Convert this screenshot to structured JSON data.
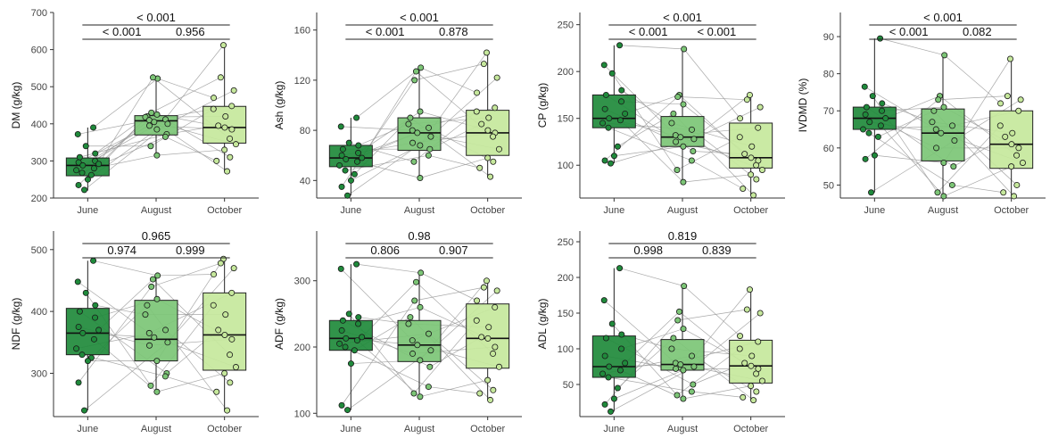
{
  "colors": {
    "june": "#1f8a3b",
    "august": "#7cc576",
    "october": "#c6e89c"
  },
  "chart_data": [
    {
      "type": "box",
      "ylabel": "DM (g/kg)",
      "categories": [
        "June",
        "August",
        "October"
      ],
      "ylim": [
        200,
        700
      ],
      "yticks": [
        200,
        300,
        400,
        500,
        600,
        700
      ],
      "boxes": [
        {
          "whisker_low": 220,
          "q1": 260,
          "median": 288,
          "q3": 308,
          "whisker_high": 390
        },
        {
          "whisker_low": 315,
          "q1": 370,
          "median": 408,
          "q3": 422,
          "whisker_high": 525
        },
        {
          "whisker_low": 272,
          "q1": 348,
          "median": 390,
          "q3": 447,
          "whisker_high": 612
        }
      ],
      "points": [
        [
          390,
          372,
          340,
          320,
          310,
          300,
          296,
          292,
          288,
          280,
          275,
          268,
          262,
          250,
          235,
          222
        ],
        [
          522,
          525,
          430,
          425,
          420,
          418,
          412,
          410,
          405,
          400,
          395,
          385,
          372,
          365,
          340,
          315
        ],
        [
          612,
          525,
          490,
          470,
          448,
          440,
          420,
          395,
          390,
          385,
          360,
          345,
          330,
          310,
          300,
          272
        ]
      ],
      "comparisons": [
        {
          "label": "< 0.001",
          "from": 0,
          "to": 1
        },
        {
          "label": "0.956",
          "from": 1,
          "to": 2
        },
        {
          "label": "< 0.001",
          "from": 0,
          "to": 2
        }
      ]
    },
    {
      "type": "box",
      "ylabel": "Ash (g/kg)",
      "categories": [
        "June",
        "August",
        "October"
      ],
      "ylim": [
        26,
        174
      ],
      "yticks": [
        40,
        80,
        120,
        160
      ],
      "boxes": [
        {
          "whisker_low": 28,
          "q1": 51,
          "median": 58,
          "q3": 68,
          "whisker_high": 90
        },
        {
          "whisker_low": 42,
          "q1": 64,
          "median": 78,
          "q3": 90,
          "whisker_high": 130
        },
        {
          "whisker_low": 43,
          "q1": 60,
          "median": 78,
          "q3": 96,
          "whisker_high": 142
        }
      ],
      "points": [
        [
          90,
          83,
          70,
          68,
          65,
          62,
          60,
          58,
          57,
          55,
          52,
          48,
          45,
          40,
          35,
          28
        ],
        [
          130,
          127,
          120,
          95,
          90,
          85,
          82,
          80,
          78,
          75,
          70,
          68,
          65,
          60,
          55,
          42
        ],
        [
          142,
          133,
          122,
          110,
          98,
          95,
          90,
          85,
          80,
          78,
          75,
          65,
          58,
          55,
          50,
          43
        ]
      ],
      "comparisons": [
        {
          "label": "< 0.001",
          "from": 0,
          "to": 1
        },
        {
          "label": "0.878",
          "from": 1,
          "to": 2
        },
        {
          "label": "< 0.001",
          "from": 0,
          "to": 2
        }
      ]
    },
    {
      "type": "box",
      "ylabel": "CP (g/kg)",
      "categories": [
        "June",
        "August",
        "October"
      ],
      "ylim": [
        65,
        263
      ],
      "yticks": [
        100,
        150,
        200,
        250
      ],
      "boxes": [
        {
          "whisker_low": 102,
          "q1": 140,
          "median": 150,
          "q3": 175,
          "whisker_high": 228
        },
        {
          "whisker_low": 82,
          "q1": 120,
          "median": 130,
          "q3": 152,
          "whisker_high": 224
        },
        {
          "whisker_low": 68,
          "q1": 97,
          "median": 108,
          "q3": 145,
          "whisker_high": 175
        }
      ],
      "points": [
        [
          228,
          207,
          198,
          180,
          175,
          168,
          160,
          155,
          150,
          148,
          145,
          140,
          120,
          110,
          105,
          102
        ],
        [
          224,
          175,
          173,
          165,
          155,
          145,
          138,
          132,
          130,
          128,
          125,
          120,
          115,
          105,
          95,
          82
        ],
        [
          175,
          170,
          162,
          150,
          140,
          130,
          120,
          112,
          108,
          105,
          100,
          95,
          90,
          85,
          75,
          68
        ]
      ],
      "comparisons": [
        {
          "label": "< 0.001",
          "from": 0,
          "to": 1
        },
        {
          "label": "< 0.001",
          "from": 1,
          "to": 2
        },
        {
          "label": "< 0.001",
          "from": 0,
          "to": 2
        }
      ]
    },
    {
      "type": "box",
      "ylabel": "IVDMD (%)",
      "categories": [
        "June",
        "August",
        "October"
      ],
      "ylim": [
        46.5,
        96.5
      ],
      "yticks": [
        50,
        60,
        70,
        80,
        90
      ],
      "boxes": [
        {
          "whisker_low": 48,
          "q1": 65,
          "median": 68,
          "q3": 71,
          "whisker_high": 89.5
        },
        {
          "whisker_low": 47,
          "q1": 56.5,
          "median": 64,
          "q3": 70.5,
          "whisker_high": 85
        },
        {
          "whisker_low": 47,
          "q1": 54.5,
          "median": 61,
          "q3": 70,
          "whisker_high": 84
        }
      ],
      "points": [
        [
          89.5,
          76.5,
          74,
          72,
          71,
          70,
          69,
          68,
          67,
          66,
          65,
          64,
          63,
          58,
          57,
          48
        ],
        [
          85,
          74,
          73,
          71,
          70,
          67,
          66,
          65,
          64,
          62,
          60,
          56,
          55,
          50,
          48,
          47
        ],
        [
          84,
          74,
          73,
          72,
          70,
          66,
          64,
          63,
          61,
          60,
          58,
          56,
          55,
          50,
          48,
          47
        ]
      ],
      "comparisons": [
        {
          "label": "< 0.001",
          "from": 0,
          "to": 1
        },
        {
          "label": "0.082",
          "from": 1,
          "to": 2
        },
        {
          "label": "< 0.001",
          "from": 0,
          "to": 2
        }
      ]
    },
    {
      "type": "box",
      "ylabel": "NDF (g/kg)",
      "categories": [
        "June",
        "August",
        "October"
      ],
      "ylim": [
        230,
        530
      ],
      "yticks": [
        300,
        400,
        500
      ],
      "boxes": [
        {
          "whisker_low": 240,
          "q1": 330,
          "median": 365,
          "q3": 405,
          "whisker_high": 482
        },
        {
          "whisker_low": 270,
          "q1": 320,
          "median": 355,
          "q3": 418,
          "whisker_high": 458
        },
        {
          "whisker_low": 240,
          "q1": 305,
          "median": 362,
          "q3": 430,
          "whisker_high": 485
        }
      ],
      "points": [
        [
          482,
          448,
          430,
          410,
          400,
          390,
          375,
          370,
          365,
          355,
          340,
          330,
          325,
          320,
          285,
          240
        ],
        [
          458,
          452,
          440,
          420,
          410,
          395,
          370,
          365,
          358,
          350,
          345,
          320,
          300,
          295,
          280,
          270
        ],
        [
          485,
          478,
          470,
          460,
          430,
          410,
          395,
          370,
          362,
          355,
          330,
          310,
          300,
          285,
          270,
          240
        ]
      ],
      "comparisons": [
        {
          "label": "0.974",
          "from": 0,
          "to": 1
        },
        {
          "label": "0.999",
          "from": 1,
          "to": 2
        },
        {
          "label": "0.965",
          "from": 0,
          "to": 2
        }
      ]
    },
    {
      "type": "box",
      "ylabel": "ADF (g/kg)",
      "categories": [
        "June",
        "August",
        "October"
      ],
      "ylim": [
        95,
        375
      ],
      "yticks": [
        100,
        200,
        300
      ],
      "boxes": [
        {
          "whisker_low": 105,
          "q1": 195,
          "median": 213,
          "q3": 240,
          "whisker_high": 325
        },
        {
          "whisker_low": 125,
          "q1": 178,
          "median": 203,
          "q3": 240,
          "whisker_high": 312
        },
        {
          "whisker_low": 120,
          "q1": 168,
          "median": 213,
          "q3": 265,
          "whisker_high": 300
        }
      ],
      "points": [
        [
          325,
          318,
          250,
          245,
          240,
          235,
          225,
          215,
          213,
          210,
          205,
          200,
          195,
          175,
          112,
          105
        ],
        [
          312,
          298,
          270,
          260,
          245,
          235,
          220,
          210,
          203,
          195,
          190,
          180,
          170,
          140,
          130,
          125
        ],
        [
          300,
          290,
          285,
          270,
          260,
          240,
          230,
          215,
          213,
          200,
          190,
          170,
          150,
          135,
          130,
          120
        ]
      ],
      "comparisons": [
        {
          "label": "0.806",
          "from": 0,
          "to": 1
        },
        {
          "label": "0.907",
          "from": 1,
          "to": 2
        },
        {
          "label": "0.98",
          "from": 0,
          "to": 2
        }
      ]
    },
    {
      "type": "box",
      "ylabel": "ADL (g/kg)",
      "categories": [
        "June",
        "August",
        "October"
      ],
      "ylim": [
        5,
        265
      ],
      "yticks": [
        50,
        100,
        150,
        200,
        250
      ],
      "boxes": [
        {
          "whisker_low": 12,
          "q1": 60,
          "median": 75,
          "q3": 118,
          "whisker_high": 213
        },
        {
          "whisker_low": 30,
          "q1": 70,
          "median": 78,
          "q3": 113,
          "whisker_high": 188
        },
        {
          "whisker_low": 28,
          "q1": 52,
          "median": 76,
          "q3": 112,
          "whisker_high": 183
        }
      ],
      "points": [
        [
          213,
          168,
          135,
          120,
          115,
          100,
          90,
          80,
          75,
          70,
          65,
          60,
          45,
          30,
          22,
          12
        ],
        [
          188,
          152,
          140,
          128,
          115,
          100,
          90,
          80,
          78,
          75,
          72,
          70,
          50,
          40,
          35,
          30
        ],
        [
          183,
          155,
          150,
          118,
          110,
          100,
          90,
          80,
          76,
          72,
          65,
          55,
          48,
          40,
          32,
          28
        ]
      ],
      "comparisons": [
        {
          "label": "0.998",
          "from": 0,
          "to": 1
        },
        {
          "label": "0.839",
          "from": 1,
          "to": 2
        },
        {
          "label": "0.819",
          "from": 0,
          "to": 2
        }
      ]
    }
  ]
}
